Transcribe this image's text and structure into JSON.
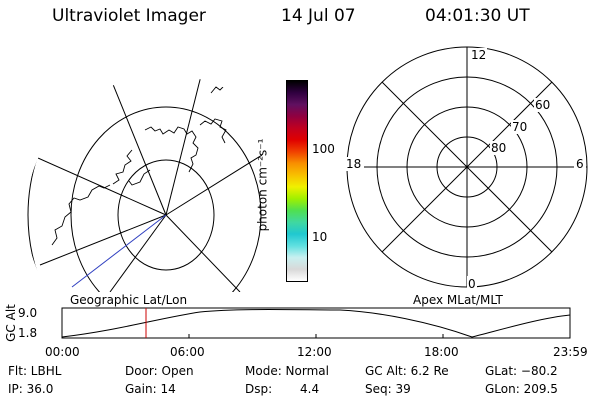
{
  "header": {
    "title": "Ultraviolet Imager",
    "date": "14 Jul 07",
    "time": "04:01:30 UT"
  },
  "colorbar": {
    "unit_label": "photon cm⁻²s⁻¹",
    "tick_100": "100",
    "tick_10": "10",
    "colors": [
      "#ffffff",
      "#d8d8d8",
      "#c8f0f0",
      "#60e0e0",
      "#20c8d0",
      "#40d8a0",
      "#50e050",
      "#a0f000",
      "#f0f000",
      "#f8c000",
      "#f89000",
      "#f04000",
      "#e00000",
      "#c00020",
      "#900040",
      "#601060",
      "#300040",
      "#000000"
    ]
  },
  "left_panel": {
    "caption": "Geographic Lat/Lon"
  },
  "right_panel": {
    "caption": "Apex MLat/MLT",
    "mlt_labels": {
      "top": "12",
      "left": "18",
      "right": "6",
      "bottom": "0"
    },
    "lat_labels": [
      "60",
      "70",
      "80"
    ]
  },
  "altitude_plot": {
    "ylabel": "GC Alt",
    "ymax": "9.0",
    "ymin": "1.8",
    "x_ticks": [
      "00:00",
      "06:00",
      "12:00",
      "18:00",
      "23:59"
    ],
    "marker_color": "#cc0000"
  },
  "info": {
    "flt": "Flt: LBHL",
    "ip": "IP: 36.0",
    "door": "Door: Open",
    "gain": "Gain: 14",
    "mode": "Mode: Normal",
    "dsp_label": "Dsp:",
    "dsp_value": "4.4",
    "gc_alt": "GC Alt: 6.2 Re",
    "seq": "Seq: 39",
    "glat": "GLat: −80.2",
    "glon": "GLon: 209.5"
  }
}
